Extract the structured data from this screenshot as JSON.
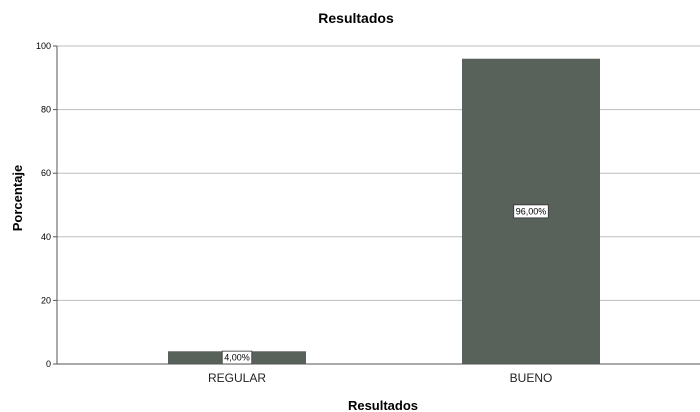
{
  "chart_data": {
    "type": "bar",
    "title": "Resultados",
    "xlabel": "Resultados",
    "ylabel": "Porcentaje",
    "categories": [
      "REGULAR",
      "BUENO"
    ],
    "values": [
      4,
      96
    ],
    "data_labels": [
      "4,00%",
      "96,00%"
    ],
    "ylim": [
      0,
      100
    ],
    "yticks": [
      0,
      20,
      40,
      60,
      80,
      100
    ],
    "grid": true,
    "bar_color": "#59615b"
  }
}
